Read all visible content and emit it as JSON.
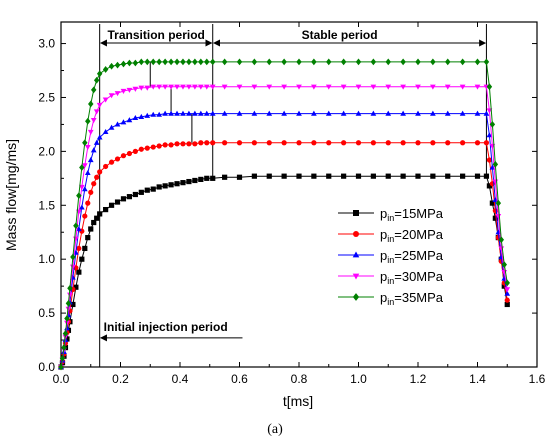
{
  "chart_data": {
    "type": "line",
    "xlabel": "t[ms]",
    "ylabel": "Mass flow[mg/ms]",
    "xlim": [
      0,
      1.6
    ],
    "ylim": [
      0,
      3.2
    ],
    "x_ticks": [
      "0.0",
      "0.2",
      "0.4",
      "0.6",
      "0.8",
      "1.0",
      "1.2",
      "1.4",
      "1.6"
    ],
    "y_ticks": [
      "0.0",
      "0.5",
      "1.0",
      "1.5",
      "2.0",
      "2.5",
      "3.0"
    ],
    "legend_position": "center-right",
    "phase_boundaries_ms": [
      0.13,
      0.51,
      1.43
    ],
    "annotations": {
      "transition": "Transition period",
      "stable": "Stable period",
      "initial": "Initial injection period"
    },
    "caption": "(a)",
    "series": [
      {
        "name": "pin=15MPa",
        "label_main": "p",
        "label_sub": "in",
        "label_rest": "=15MPa",
        "color": "#000000",
        "marker": "square",
        "x": [
          0,
          0.005,
          0.01,
          0.015,
          0.02,
          0.025,
          0.03,
          0.04,
          0.05,
          0.06,
          0.07,
          0.08,
          0.09,
          0.1,
          0.11,
          0.12,
          0.13,
          0.15,
          0.17,
          0.19,
          0.21,
          0.23,
          0.25,
          0.27,
          0.29,
          0.31,
          0.33,
          0.35,
          0.37,
          0.39,
          0.41,
          0.43,
          0.45,
          0.47,
          0.49,
          0.51,
          0.55,
          0.6,
          0.65,
          0.7,
          0.75,
          0.8,
          0.85,
          0.9,
          0.95,
          1.0,
          1.05,
          1.1,
          1.15,
          1.2,
          1.25,
          1.3,
          1.35,
          1.4,
          1.43,
          1.44,
          1.45,
          1.46,
          1.47,
          1.48,
          1.49,
          1.5
        ],
        "y": [
          0,
          0.04,
          0.1,
          0.18,
          0.26,
          0.34,
          0.42,
          0.58,
          0.74,
          0.88,
          1.0,
          1.1,
          1.2,
          1.28,
          1.34,
          1.38,
          1.42,
          1.46,
          1.5,
          1.53,
          1.56,
          1.58,
          1.6,
          1.62,
          1.64,
          1.65,
          1.67,
          1.68,
          1.69,
          1.7,
          1.71,
          1.72,
          1.73,
          1.74,
          1.75,
          1.75,
          1.76,
          1.76,
          1.77,
          1.77,
          1.77,
          1.77,
          1.77,
          1.77,
          1.77,
          1.77,
          1.77,
          1.77,
          1.77,
          1.77,
          1.77,
          1.77,
          1.77,
          1.77,
          1.77,
          1.68,
          1.52,
          1.38,
          1.2,
          1.0,
          0.75,
          0.58
        ]
      },
      {
        "name": "pin=20MPa",
        "label_main": "p",
        "label_sub": "in",
        "label_rest": "=20MPa",
        "color": "#ff0000",
        "marker": "circle",
        "x": [
          0,
          0.005,
          0.01,
          0.015,
          0.02,
          0.025,
          0.03,
          0.04,
          0.05,
          0.06,
          0.07,
          0.08,
          0.09,
          0.1,
          0.11,
          0.12,
          0.13,
          0.15,
          0.17,
          0.19,
          0.21,
          0.23,
          0.25,
          0.27,
          0.29,
          0.31,
          0.33,
          0.35,
          0.37,
          0.39,
          0.41,
          0.43,
          0.45,
          0.47,
          0.49,
          0.51,
          0.55,
          0.6,
          0.65,
          0.7,
          0.75,
          0.8,
          0.85,
          0.9,
          0.95,
          1.0,
          1.05,
          1.1,
          1.15,
          1.2,
          1.25,
          1.3,
          1.35,
          1.4,
          1.43,
          1.44,
          1.45,
          1.46,
          1.47,
          1.48,
          1.49,
          1.5
        ],
        "y": [
          0,
          0.05,
          0.12,
          0.22,
          0.32,
          0.42,
          0.52,
          0.72,
          0.92,
          1.1,
          1.26,
          1.4,
          1.52,
          1.62,
          1.7,
          1.76,
          1.81,
          1.86,
          1.9,
          1.93,
          1.96,
          1.98,
          2.0,
          2.02,
          2.03,
          2.04,
          2.05,
          2.06,
          2.06,
          2.07,
          2.07,
          2.07,
          2.07,
          2.08,
          2.08,
          2.08,
          2.08,
          2.08,
          2.08,
          2.08,
          2.08,
          2.08,
          2.08,
          2.08,
          2.08,
          2.08,
          2.08,
          2.08,
          2.08,
          2.08,
          2.08,
          2.08,
          2.08,
          2.08,
          2.08,
          1.92,
          1.7,
          1.45,
          1.2,
          0.98,
          0.78,
          0.62
        ]
      },
      {
        "name": "pin=25MPa",
        "label_main": "p",
        "label_sub": "in",
        "label_rest": "=25MPa",
        "color": "#0000ff",
        "marker": "triangle-up",
        "x": [
          0,
          0.005,
          0.01,
          0.015,
          0.02,
          0.025,
          0.03,
          0.04,
          0.05,
          0.06,
          0.07,
          0.08,
          0.09,
          0.1,
          0.11,
          0.12,
          0.13,
          0.15,
          0.17,
          0.19,
          0.21,
          0.23,
          0.25,
          0.27,
          0.29,
          0.31,
          0.33,
          0.35,
          0.37,
          0.39,
          0.41,
          0.43,
          0.45,
          0.47,
          0.49,
          0.51,
          0.55,
          0.6,
          0.65,
          0.7,
          0.75,
          0.8,
          0.85,
          0.9,
          0.95,
          1.0,
          1.05,
          1.1,
          1.15,
          1.2,
          1.25,
          1.3,
          1.35,
          1.4,
          1.43,
          1.44,
          1.45,
          1.46,
          1.47,
          1.48,
          1.49,
          1.5
        ],
        "y": [
          0,
          0.06,
          0.14,
          0.25,
          0.36,
          0.48,
          0.6,
          0.83,
          1.06,
          1.28,
          1.48,
          1.65,
          1.8,
          1.92,
          2.01,
          2.08,
          2.13,
          2.18,
          2.22,
          2.25,
          2.27,
          2.29,
          2.31,
          2.32,
          2.33,
          2.34,
          2.34,
          2.35,
          2.35,
          2.35,
          2.35,
          2.35,
          2.35,
          2.35,
          2.35,
          2.35,
          2.35,
          2.35,
          2.35,
          2.35,
          2.35,
          2.35,
          2.35,
          2.35,
          2.35,
          2.35,
          2.35,
          2.35,
          2.35,
          2.35,
          2.35,
          2.35,
          2.35,
          2.35,
          2.35,
          2.15,
          1.85,
          1.55,
          1.25,
          1.02,
          0.82,
          0.68
        ]
      },
      {
        "name": "pin=30MPa",
        "label_main": "p",
        "label_sub": "in",
        "label_rest": "=30MPa",
        "color": "#ff00ff",
        "marker": "triangle-down",
        "x": [
          0,
          0.005,
          0.01,
          0.015,
          0.02,
          0.025,
          0.03,
          0.04,
          0.05,
          0.06,
          0.07,
          0.08,
          0.09,
          0.1,
          0.11,
          0.12,
          0.13,
          0.15,
          0.17,
          0.19,
          0.21,
          0.23,
          0.25,
          0.27,
          0.29,
          0.31,
          0.33,
          0.35,
          0.37,
          0.39,
          0.41,
          0.43,
          0.45,
          0.47,
          0.49,
          0.51,
          0.55,
          0.6,
          0.65,
          0.7,
          0.75,
          0.8,
          0.85,
          0.9,
          0.95,
          1.0,
          1.05,
          1.1,
          1.15,
          1.2,
          1.25,
          1.3,
          1.35,
          1.4,
          1.43,
          1.44,
          1.45,
          1.46,
          1.47,
          1.48,
          1.49,
          1.5
        ],
        "y": [
          0,
          0.07,
          0.16,
          0.28,
          0.41,
          0.54,
          0.67,
          0.93,
          1.19,
          1.44,
          1.67,
          1.87,
          2.04,
          2.18,
          2.29,
          2.37,
          2.43,
          2.48,
          2.52,
          2.54,
          2.56,
          2.57,
          2.58,
          2.59,
          2.59,
          2.6,
          2.6,
          2.6,
          2.6,
          2.6,
          2.6,
          2.6,
          2.6,
          2.6,
          2.6,
          2.6,
          2.6,
          2.6,
          2.6,
          2.6,
          2.6,
          2.6,
          2.6,
          2.6,
          2.6,
          2.6,
          2.6,
          2.6,
          2.6,
          2.6,
          2.6,
          2.6,
          2.6,
          2.6,
          2.6,
          2.38,
          2.05,
          1.72,
          1.4,
          1.1,
          0.88,
          0.72
        ]
      },
      {
        "name": "pin=35MPa",
        "label_main": "p",
        "label_sub": "in",
        "label_rest": "=35MPa",
        "color": "#008000",
        "marker": "diamond",
        "x": [
          0,
          0.005,
          0.01,
          0.015,
          0.02,
          0.025,
          0.03,
          0.04,
          0.05,
          0.06,
          0.07,
          0.08,
          0.09,
          0.1,
          0.11,
          0.12,
          0.13,
          0.15,
          0.17,
          0.19,
          0.21,
          0.23,
          0.25,
          0.27,
          0.29,
          0.31,
          0.33,
          0.35,
          0.37,
          0.39,
          0.41,
          0.43,
          0.45,
          0.47,
          0.49,
          0.51,
          0.55,
          0.6,
          0.65,
          0.7,
          0.75,
          0.8,
          0.85,
          0.9,
          0.95,
          1.0,
          1.05,
          1.1,
          1.15,
          1.2,
          1.25,
          1.3,
          1.35,
          1.4,
          1.43,
          1.44,
          1.45,
          1.46,
          1.47,
          1.48,
          1.49,
          1.5
        ],
        "y": [
          0,
          0.08,
          0.18,
          0.31,
          0.45,
          0.59,
          0.73,
          1.02,
          1.31,
          1.59,
          1.85,
          2.08,
          2.28,
          2.44,
          2.57,
          2.66,
          2.72,
          2.76,
          2.79,
          2.8,
          2.81,
          2.82,
          2.82,
          2.83,
          2.83,
          2.83,
          2.83,
          2.83,
          2.83,
          2.83,
          2.83,
          2.83,
          2.83,
          2.83,
          2.83,
          2.83,
          2.83,
          2.83,
          2.83,
          2.83,
          2.83,
          2.83,
          2.83,
          2.83,
          2.83,
          2.83,
          2.83,
          2.83,
          2.83,
          2.83,
          2.83,
          2.83,
          2.83,
          2.83,
          2.83,
          2.6,
          2.25,
          1.88,
          1.52,
          1.18,
          0.95,
          0.78
        ]
      }
    ]
  }
}
